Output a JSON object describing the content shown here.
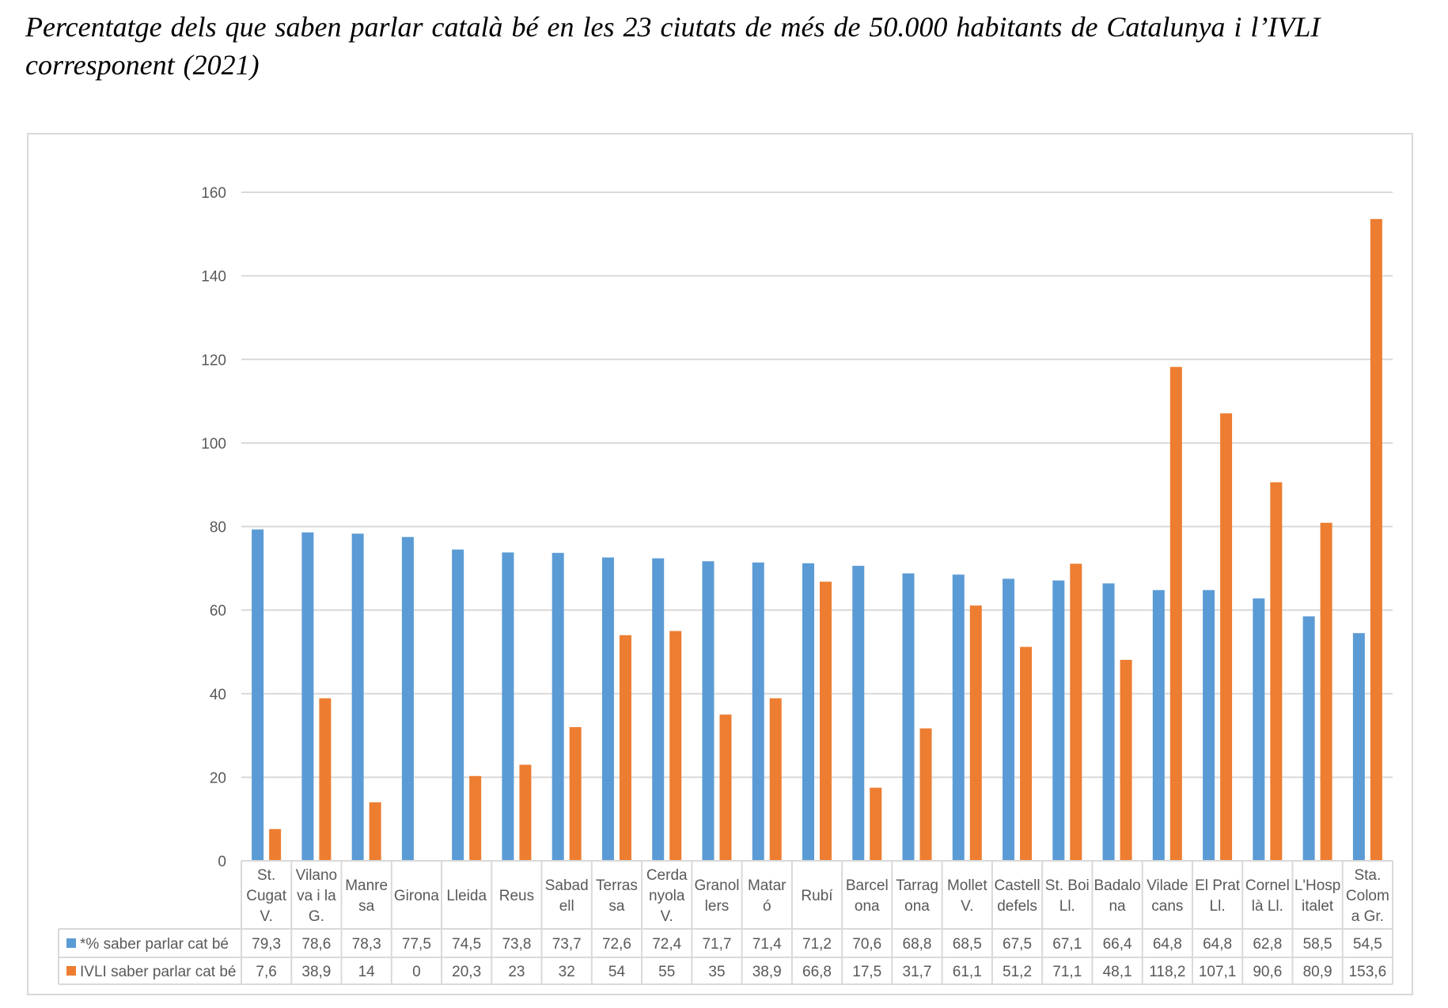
{
  "title": "Percentatge dels que saben parlar català bé en les 23 ciutats de més de 50.000 habitants de Catalunya i l’IVLI corresponent (2021)",
  "chart_data": {
    "type": "bar",
    "ylim": [
      0,
      160
    ],
    "yticks": [
      0,
      20,
      40,
      60,
      80,
      100,
      120,
      140,
      160
    ],
    "grid": true,
    "legend": "data-table",
    "categories": [
      [
        "St.",
        "Cugat",
        "V."
      ],
      [
        "Vilano",
        "va i la",
        "G."
      ],
      [
        "Manre",
        "sa"
      ],
      [
        "Girona"
      ],
      [
        "Lleida"
      ],
      [
        "Reus"
      ],
      [
        "Sabad",
        "ell"
      ],
      [
        "Terras",
        "sa"
      ],
      [
        "Cerda",
        "nyola",
        "V."
      ],
      [
        "Granol",
        "lers"
      ],
      [
        "Matar",
        "ó"
      ],
      [
        "Rubí"
      ],
      [
        "Barcel",
        "ona"
      ],
      [
        "Tarrag",
        "ona"
      ],
      [
        "Mollet",
        "V."
      ],
      [
        "Castell",
        "defels"
      ],
      [
        "St. Boi",
        "Ll."
      ],
      [
        "Badalo",
        "na"
      ],
      [
        "Vilade",
        "cans"
      ],
      [
        "El Prat",
        "Ll."
      ],
      [
        "Cornel",
        "là Ll."
      ],
      [
        "L'Hosp",
        "italet"
      ],
      [
        "Sta.",
        "Colom",
        "a Gr."
      ]
    ],
    "series": [
      {
        "name": "*% saber parlar cat bé",
        "color": "#5b9bd5",
        "values": [
          79.3,
          78.6,
          78.3,
          77.5,
          74.5,
          73.8,
          73.7,
          72.6,
          72.4,
          71.7,
          71.4,
          71.2,
          70.6,
          68.8,
          68.5,
          67.5,
          67.1,
          66.4,
          64.8,
          64.8,
          62.8,
          58.5,
          54.5
        ],
        "labels": [
          "79,3",
          "78,6",
          "78,3",
          "77,5",
          "74,5",
          "73,8",
          "73,7",
          "72,6",
          "72,4",
          "71,7",
          "71,4",
          "71,2",
          "70,6",
          "68,8",
          "68,5",
          "67,5",
          "67,1",
          "66,4",
          "64,8",
          "64,8",
          "62,8",
          "58,5",
          "54,5"
        ]
      },
      {
        "name": "IVLI saber parlar cat bé",
        "color": "#ed7d31",
        "values": [
          7.6,
          38.9,
          14,
          0,
          20.3,
          23,
          32,
          54,
          55,
          35,
          38.9,
          66.8,
          17.5,
          31.7,
          61.1,
          51.2,
          71.1,
          48.1,
          118.2,
          107.1,
          90.6,
          80.9,
          153.6
        ],
        "labels": [
          "7,6",
          "38,9",
          "14",
          "0",
          "20,3",
          "23",
          "32",
          "54",
          "55",
          "35",
          "38,9",
          "66,8",
          "17,5",
          "31,7",
          "61,1",
          "51,2",
          "71,1",
          "48,1",
          "118,2",
          "107,1",
          "90,6",
          "80,9",
          "153,6"
        ]
      }
    ]
  }
}
